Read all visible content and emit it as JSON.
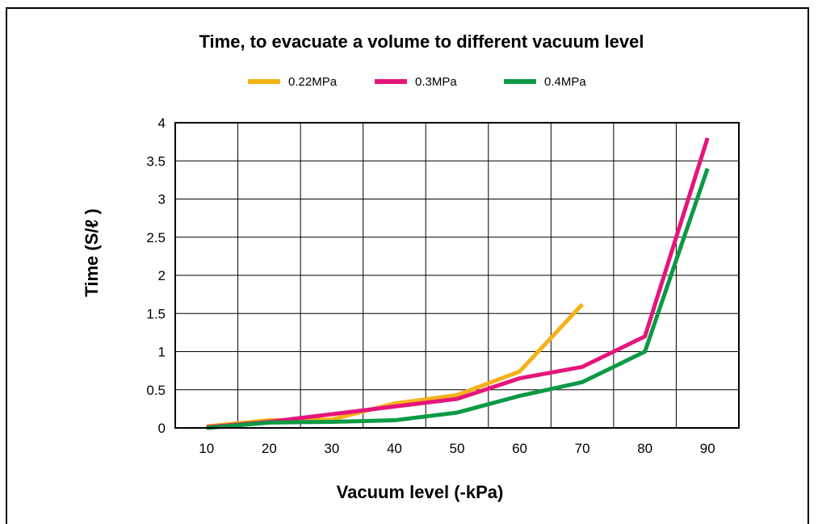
{
  "chart_data": {
    "type": "line",
    "title": "Time, to evacuate a volume to different vacuum level",
    "xlabel": "Vacuum level (-kPa)",
    "ylabel": "Time (S/ℓ )",
    "x": [
      10,
      20,
      30,
      40,
      50,
      60,
      70,
      80,
      90
    ],
    "xticks": [
      "10",
      "20",
      "30",
      "40",
      "50",
      "60",
      "70",
      "80",
      "90"
    ],
    "yticks": [
      "0",
      "0.5",
      "1",
      "1.5",
      "2",
      "2.5",
      "3",
      "3.5",
      "4"
    ],
    "ylim": [
      0,
      4
    ],
    "grid": true,
    "legend_position": "top",
    "series": [
      {
        "name": "0.22MPa",
        "color": "#f5b117",
        "x": [
          10,
          20,
          30,
          40,
          50,
          60,
          70
        ],
        "values": [
          0.02,
          0.1,
          0.11,
          0.32,
          0.43,
          0.74,
          1.62
        ]
      },
      {
        "name": "0.3MPa",
        "color": "#e5157a",
        "x": [
          10,
          20,
          30,
          40,
          50,
          60,
          70,
          80,
          90
        ],
        "values": [
          0.01,
          0.08,
          0.18,
          0.28,
          0.38,
          0.65,
          0.8,
          1.2,
          3.8
        ]
      },
      {
        "name": "0.4MPa",
        "color": "#0b9a43",
        "x": [
          10,
          20,
          30,
          40,
          50,
          60,
          70,
          80,
          90
        ],
        "values": [
          0.0,
          0.07,
          0.08,
          0.1,
          0.2,
          0.42,
          0.6,
          1.0,
          3.4
        ]
      }
    ]
  }
}
